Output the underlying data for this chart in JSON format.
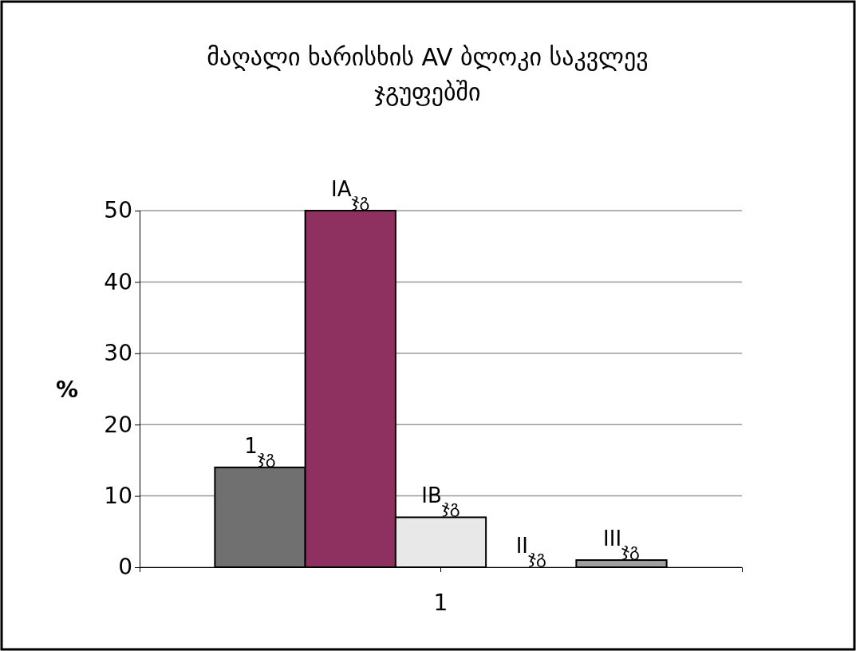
{
  "chart_data": {
    "type": "bar",
    "title": "მაღალი ხარისხის AV ბლოკი საკვლევ ჯგუფებში",
    "ylabel": "%",
    "categories": [
      "1"
    ],
    "series": [
      {
        "name": "1$_{ჯგ}$",
        "color": "#707070",
        "values": [
          14
        ]
      },
      {
        "name": "IA$_{ჯგ}$",
        "color": "#8e3060",
        "values": [
          50
        ]
      },
      {
        "name": "IB$_{ჯგ}$",
        "color": "#e8e8e8",
        "values": [
          7
        ]
      },
      {
        "name": "II$_{ჯგ}$",
        "color": "#222222",
        "values": [
          0
        ]
      },
      {
        "name": "III$_{ჯგ}$",
        "color": "#a0a0a0",
        "values": [
          1
        ]
      }
    ],
    "ylim": [
      0,
      50
    ],
    "yticks": [
      0,
      10,
      20,
      30,
      40,
      50
    ],
    "grid": "y",
    "legend": false
  }
}
